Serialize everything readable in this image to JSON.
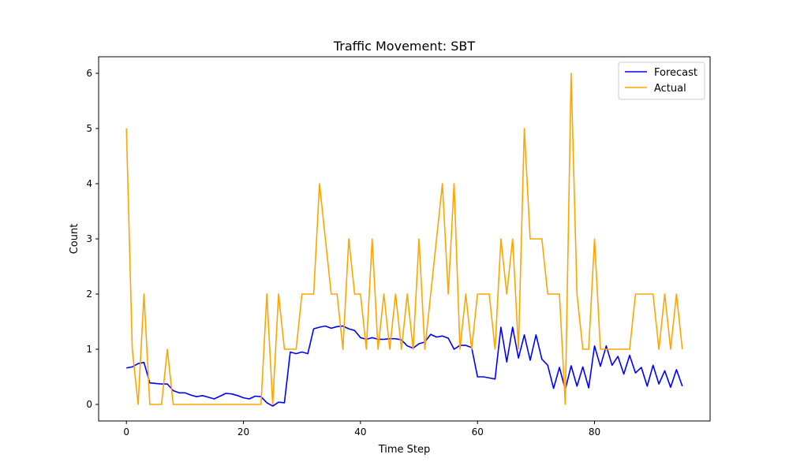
{
  "chart_data": {
    "type": "line",
    "title": "Traffic Movement: SBT",
    "xlabel": "Time Step",
    "ylabel": "Count",
    "xlim": [
      -4.75,
      99.75
    ],
    "ylim": [
      -0.3,
      6.3
    ],
    "xticks": [
      0,
      20,
      40,
      60,
      80
    ],
    "yticks": [
      0,
      1,
      2,
      3,
      4,
      5,
      6
    ],
    "grid": false,
    "legend": "top-right",
    "series": [
      {
        "name": "Forecast",
        "color": "#0000ff",
        "values": [
          0.66,
          0.68,
          0.74,
          0.76,
          0.39,
          0.38,
          0.37,
          0.37,
          0.25,
          0.21,
          0.21,
          0.17,
          0.14,
          0.16,
          0.13,
          0.1,
          0.15,
          0.2,
          0.19,
          0.16,
          0.12,
          0.1,
          0.15,
          0.14,
          0.03,
          -0.03,
          0.04,
          0.03,
          0.95,
          0.92,
          0.95,
          0.92,
          1.37,
          1.4,
          1.42,
          1.38,
          1.41,
          1.42,
          1.37,
          1.34,
          1.21,
          1.18,
          1.21,
          1.18,
          1.18,
          1.19,
          1.19,
          1.17,
          1.06,
          1.02,
          1.1,
          1.13,
          1.27,
          1.22,
          1.24,
          1.2,
          1.0,
          1.07,
          1.07,
          1.03,
          0.5,
          0.5,
          0.48,
          0.46,
          1.4,
          0.77,
          1.4,
          0.84,
          1.26,
          0.8,
          1.26,
          0.82,
          0.71,
          0.29,
          0.67,
          0.27,
          0.7,
          0.33,
          0.68,
          0.3,
          1.06,
          0.69,
          1.06,
          0.71,
          0.87,
          0.55,
          0.89,
          0.57,
          0.67,
          0.33,
          0.71,
          0.37,
          0.61,
          0.31,
          0.63,
          0.33
        ]
      },
      {
        "name": "Actual",
        "color": "#ffa500",
        "values": [
          5,
          1,
          0,
          2,
          0,
          0,
          0,
          1,
          0,
          0,
          0,
          0,
          0,
          0,
          0,
          0,
          0,
          0,
          0,
          0,
          0,
          0,
          0,
          0,
          2,
          0,
          2,
          1,
          1,
          1,
          2,
          2,
          2,
          4,
          3,
          2,
          2,
          1,
          3,
          2,
          2,
          1,
          3,
          1,
          2,
          1,
          2,
          1,
          2,
          1,
          3,
          1,
          2,
          3,
          4,
          2,
          4,
          1,
          2,
          1,
          2,
          2,
          2,
          1,
          3,
          2,
          3,
          1,
          5,
          3,
          3,
          3,
          2,
          2,
          2,
          0,
          6,
          2,
          1,
          1,
          3,
          1,
          1,
          1,
          1,
          1,
          1,
          2,
          2,
          2,
          2,
          1,
          2,
          1,
          2,
          1
        ]
      }
    ]
  }
}
